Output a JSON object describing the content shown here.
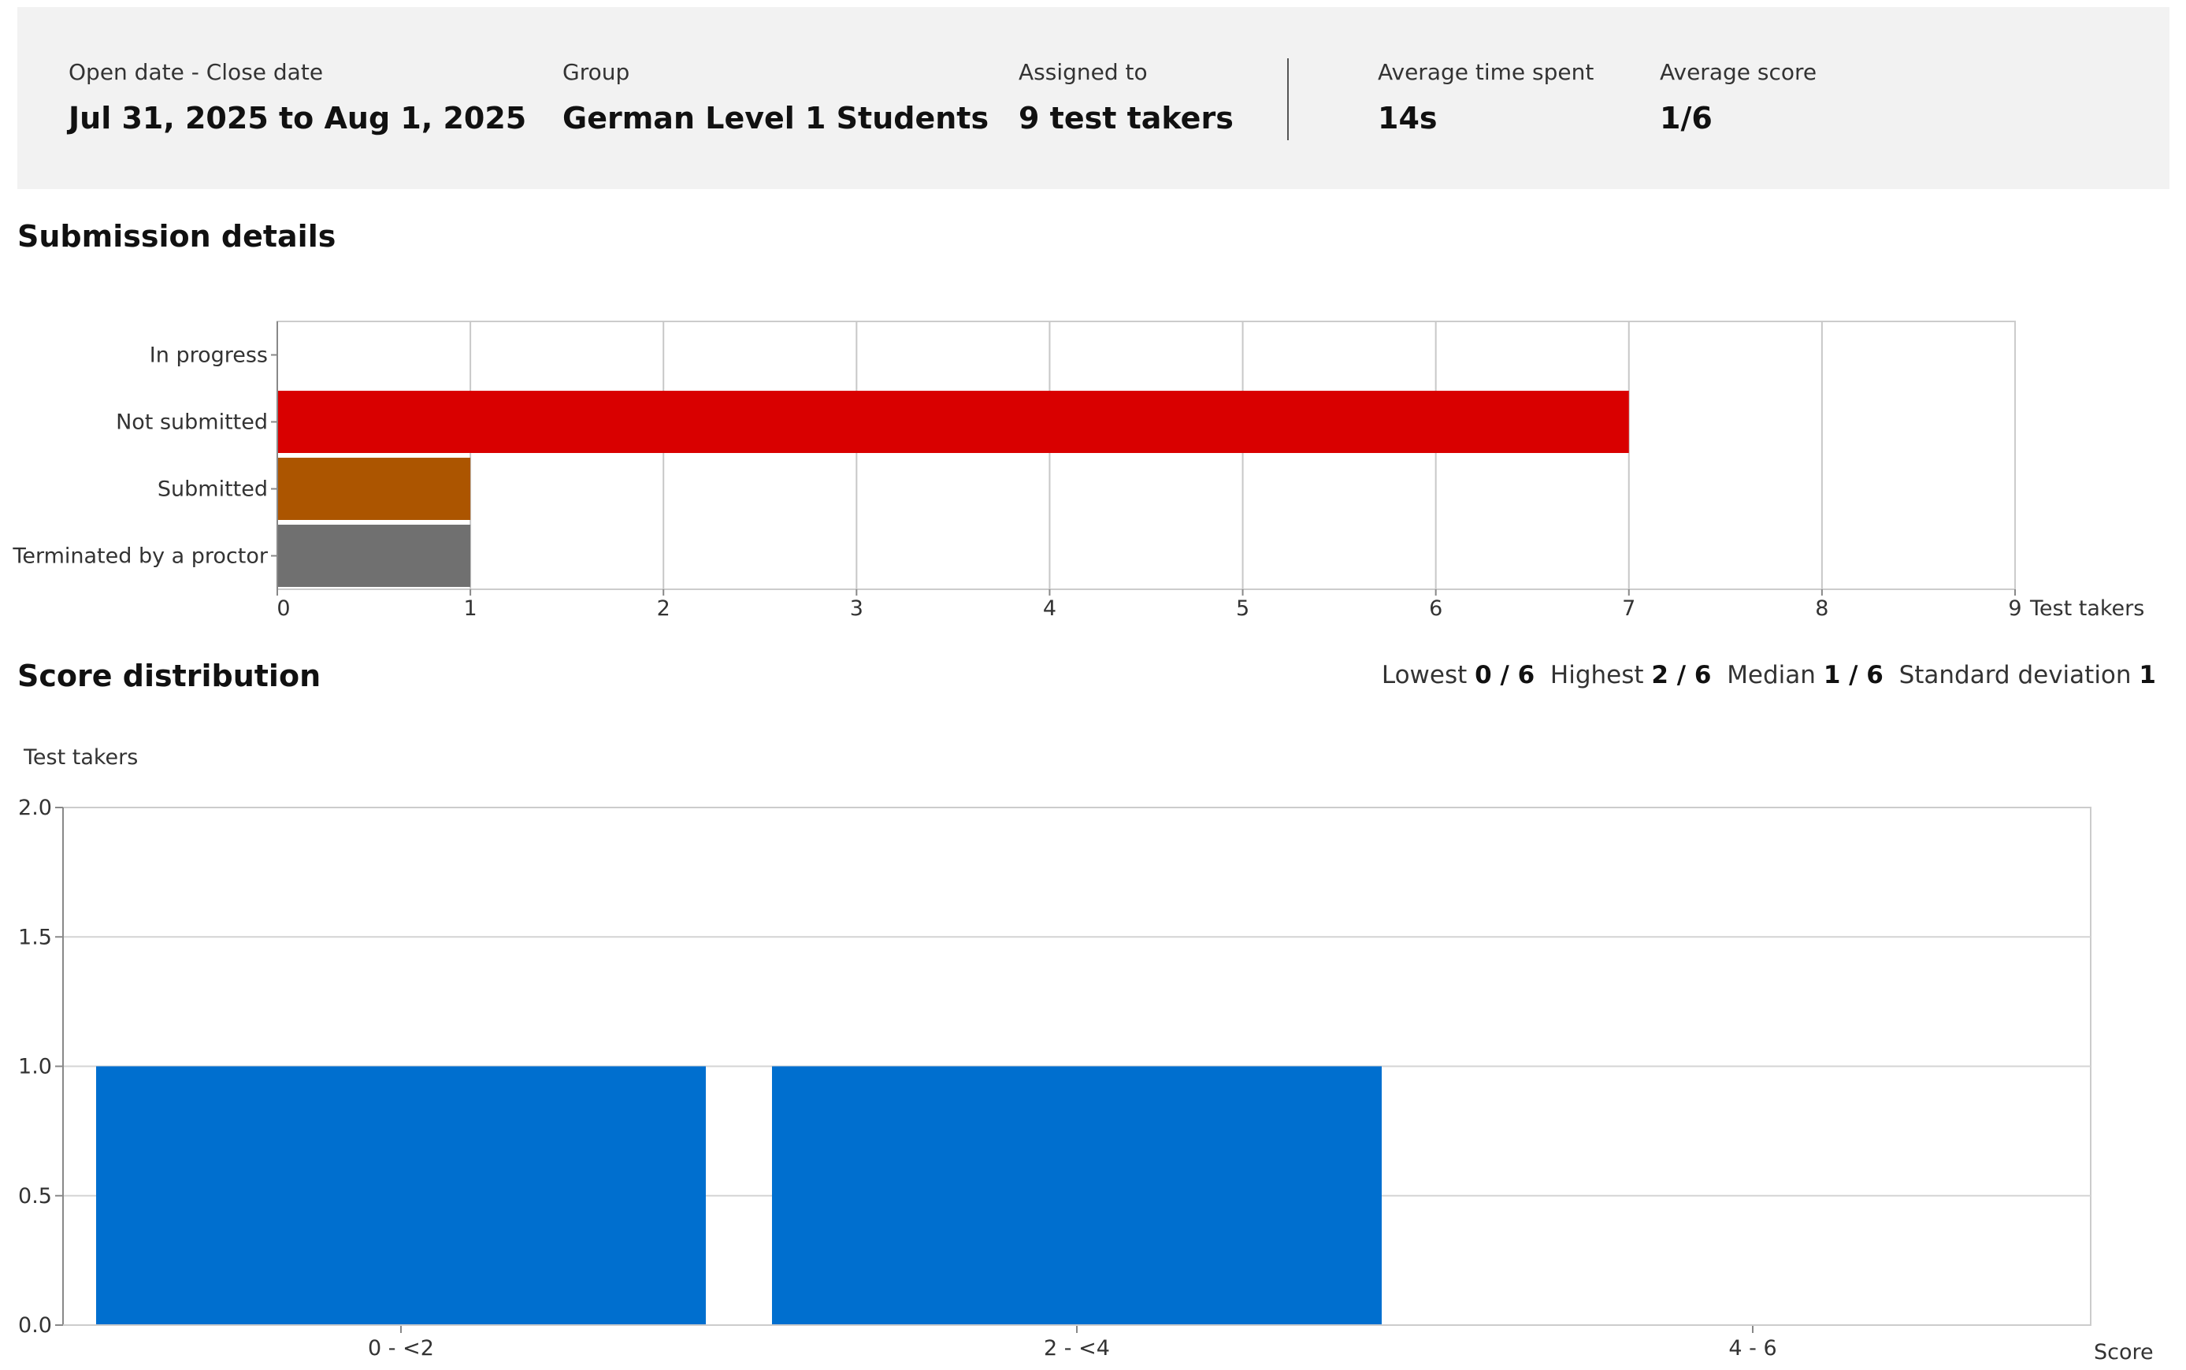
{
  "summary": {
    "dates": {
      "label": "Open date - Close date",
      "value": "Jul 31, 2025 to Aug 1, 2025"
    },
    "group": {
      "label": "Group",
      "value": "German Level 1 Students"
    },
    "assigned": {
      "label": "Assigned to",
      "value": "9 test takers"
    },
    "avg_time": {
      "label": "Average time spent",
      "value": "14s"
    },
    "avg_score": {
      "label": "Average score",
      "value": "1/6"
    }
  },
  "submission": {
    "title": "Submission details"
  },
  "distribution": {
    "title": "Score distribution",
    "stats": {
      "lowest_label": "Lowest",
      "lowest": "0 / 6",
      "highest_label": "Highest",
      "highest": "2 / 6",
      "median_label": "Median",
      "median": "1 / 6",
      "sd_label": "Standard deviation",
      "sd": "1"
    }
  },
  "chart_data": [
    {
      "type": "bar",
      "orientation": "horizontal",
      "categories": [
        "In progress",
        "Not submitted",
        "Submitted",
        "Terminated by a proctor"
      ],
      "values": [
        0,
        7,
        1,
        1
      ],
      "colors": [
        "#cccccc",
        "#d90000",
        "#ac5500",
        "#707070"
      ],
      "xlabel": "Test takers",
      "xlim": [
        0,
        9
      ],
      "xticks": [
        0,
        1,
        2,
        3,
        4,
        5,
        6,
        7,
        8,
        9
      ],
      "grid": true
    },
    {
      "type": "bar",
      "categories": [
        "0 - <2",
        "2 - <4",
        "4 - 6"
      ],
      "values": [
        1,
        1,
        0
      ],
      "color": "#006fcf",
      "ylabel": "Test takers",
      "xlabel": "Score",
      "ylim": [
        0,
        2
      ],
      "yticks": [
        "0.0",
        "0.5",
        "1.0",
        "1.5",
        "2.0"
      ],
      "grid": true
    }
  ]
}
